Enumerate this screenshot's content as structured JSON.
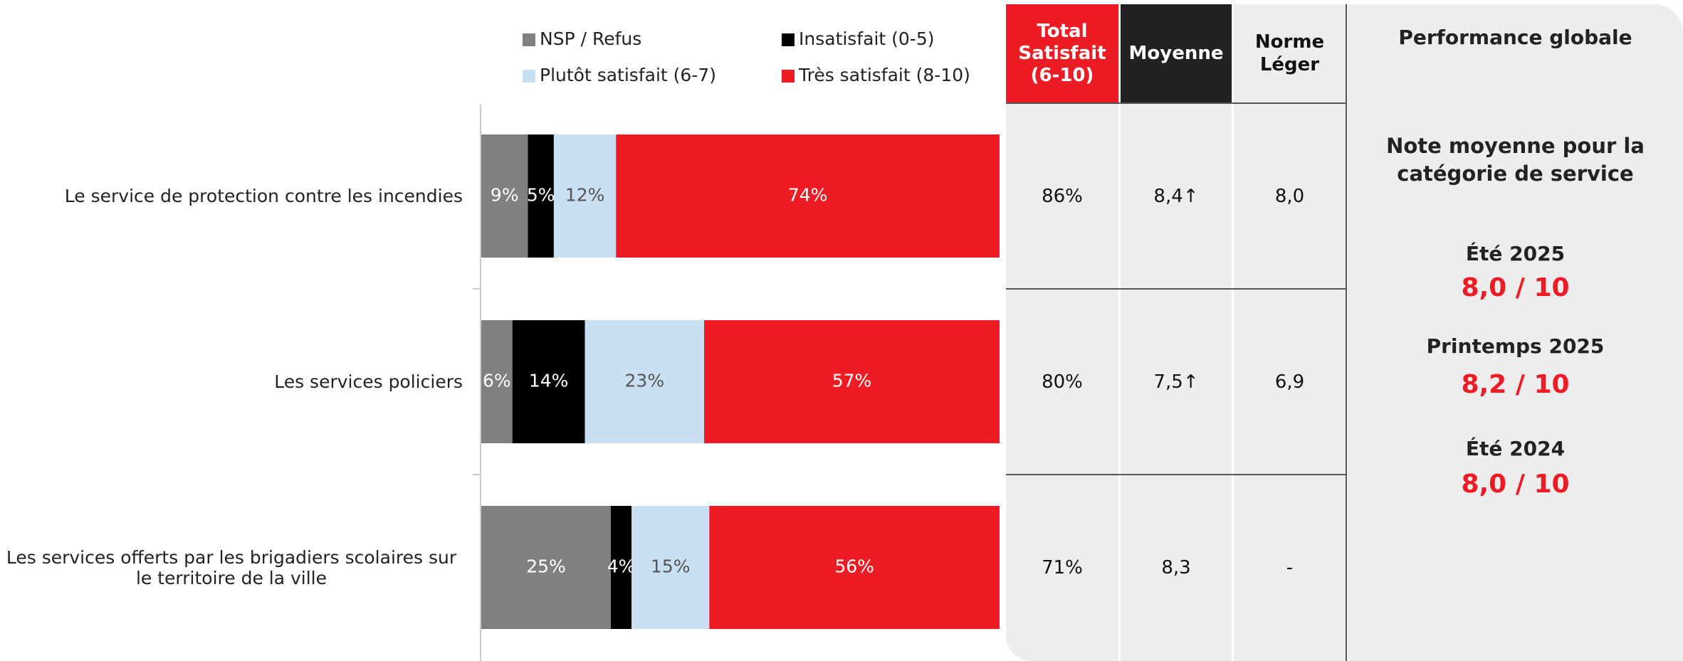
{
  "chart_data": {
    "type": "bar",
    "orientation": "horizontal",
    "stacked": true,
    "categories": [
      "Le service de protection contre les incendies",
      "Les services policiers",
      "Les services offerts par les brigadiers scolaires sur le territoire de la ville"
    ],
    "xlim": [
      0,
      100
    ],
    "series": [
      {
        "name": "NSP / Refus",
        "color": "#808080",
        "label_color": "#ffffff",
        "values": [
          9,
          6,
          25
        ],
        "value_labels": [
          "9%",
          "6%",
          "25%"
        ]
      },
      {
        "name": "Insatisfait (0-5)",
        "color": "#000000",
        "label_color": "#ffffff",
        "values": [
          5,
          14,
          4
        ],
        "value_labels": [
          "5%",
          "14%",
          "4%"
        ]
      },
      {
        "name": "Plutôt satisfait (6-7)",
        "color": "#c9dff2",
        "label_color": "#555555",
        "values": [
          12,
          23,
          15
        ],
        "value_labels": [
          "12%",
          "23%",
          "15%"
        ]
      },
      {
        "name": "Très satisfait (8-10)",
        "color": "#ed1c24",
        "label_color": "#ffffff",
        "values": [
          74,
          57,
          56
        ],
        "value_labels": [
          "74%",
          "57%",
          "56%"
        ]
      }
    ]
  },
  "table": {
    "header": [
      "Total Satisfait (6-10)",
      "Moyenne",
      "Norme Léger"
    ],
    "rows": [
      [
        "86%",
        "8,4↑",
        "8,0"
      ],
      [
        "80%",
        "7,5↑",
        "6,9"
      ],
      [
        "71%",
        "8,3",
        "-"
      ]
    ]
  },
  "panel": {
    "title": "Performance globale",
    "subtitle": "Note moyenne pour la catégorie de service",
    "periods": [
      {
        "label": "Été 2025",
        "score": "8,0 / 10"
      },
      {
        "label": "Printemps 2025",
        "score": "8,2 / 10"
      },
      {
        "label": "Été 2024",
        "score": "8,0 / 10"
      }
    ]
  }
}
